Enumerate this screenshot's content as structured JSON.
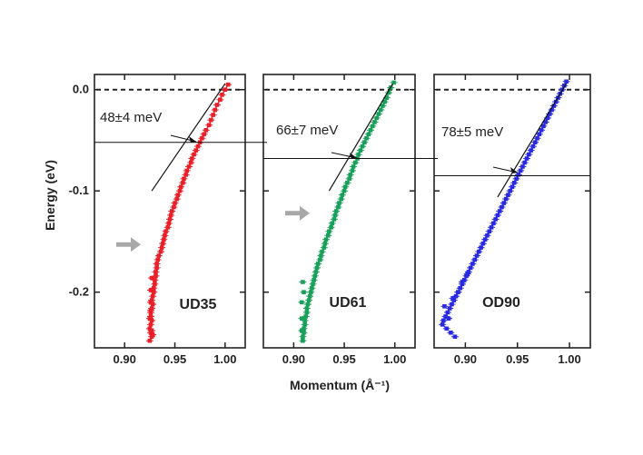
{
  "chart_data": {
    "type": "scatter",
    "xlabel": "Momentum (Å⁻¹)",
    "ylabel": "Energy (eV)",
    "xlim": [
      0.87,
      1.02
    ],
    "ylim": [
      -0.255,
      0.015
    ],
    "x_ticks": [
      "0.90",
      "0.95",
      "1.00"
    ],
    "y_ticks": [
      "0.0",
      "-0.1",
      "-0.2"
    ],
    "y_tick_values": [
      0.0,
      -0.1,
      -0.2
    ],
    "x_tick_values": [
      0.9,
      0.95,
      1.0
    ],
    "zero_line": "dashed",
    "panels": [
      {
        "label": "UD35",
        "color": "#e8202a",
        "kink_label": "48±4 meV",
        "kink_energy": -0.052,
        "kink_momentum": 0.966,
        "fit_line": [
          [
            0.927,
            -0.1
          ],
          [
            1.0,
            0.006
          ]
        ],
        "arrow_energy": -0.153,
        "x": [
          1.003,
          1.0,
          0.997,
          0.995,
          0.992,
          0.99,
          0.988,
          0.986,
          0.984,
          0.981,
          0.979,
          0.977,
          0.975,
          0.973,
          0.971,
          0.969,
          0.967,
          0.966,
          0.964,
          0.962,
          0.961,
          0.959,
          0.958,
          0.956,
          0.955,
          0.953,
          0.952,
          0.95,
          0.949,
          0.947,
          0.946,
          0.945,
          0.944,
          0.943,
          0.941,
          0.94,
          0.939,
          0.938,
          0.937,
          0.936,
          0.934,
          0.933,
          0.932,
          0.932,
          0.931,
          0.931,
          0.93,
          0.93,
          0.929,
          0.929,
          0.928,
          0.927,
          0.928,
          0.927,
          0.926,
          0.926,
          0.927,
          0.926,
          0.925,
          0.926,
          0.927,
          0.925,
          0.926,
          0.927,
          0.926,
          0.925,
          0.927,
          0.926,
          0.928
        ],
        "y": [
          0.005,
          0.0,
          -0.005,
          -0.01,
          -0.015,
          -0.02,
          -0.025,
          -0.03,
          -0.035,
          -0.04,
          -0.044,
          -0.048,
          -0.052,
          -0.056,
          -0.06,
          -0.064,
          -0.068,
          -0.072,
          -0.076,
          -0.08,
          -0.084,
          -0.088,
          -0.092,
          -0.096,
          -0.1,
          -0.104,
          -0.108,
          -0.112,
          -0.116,
          -0.12,
          -0.124,
          -0.128,
          -0.132,
          -0.136,
          -0.14,
          -0.144,
          -0.148,
          -0.152,
          -0.156,
          -0.16,
          -0.164,
          -0.168,
          -0.172,
          -0.176,
          -0.18,
          -0.184,
          -0.188,
          -0.192,
          -0.196,
          -0.2,
          -0.204,
          -0.208,
          -0.212,
          -0.216,
          -0.22,
          -0.224,
          -0.228,
          -0.232,
          -0.236,
          -0.24,
          -0.244,
          -0.248,
          -0.21,
          -0.186,
          -0.198,
          -0.226,
          -0.238,
          -0.218,
          -0.242
        ]
      },
      {
        "label": "UD61",
        "color": "#19a05a",
        "kink_label": "66±7 meV",
        "kink_energy": -0.068,
        "kink_momentum": 0.956,
        "fit_line": [
          [
            0.935,
            -0.1
          ],
          [
            0.998,
            0.006
          ]
        ],
        "arrow_energy": -0.122,
        "x": [
          0.999,
          0.996,
          0.994,
          0.992,
          0.99,
          0.988,
          0.986,
          0.984,
          0.982,
          0.98,
          0.978,
          0.976,
          0.974,
          0.972,
          0.97,
          0.968,
          0.966,
          0.964,
          0.963,
          0.961,
          0.959,
          0.958,
          0.956,
          0.955,
          0.953,
          0.951,
          0.95,
          0.948,
          0.947,
          0.945,
          0.944,
          0.942,
          0.941,
          0.94,
          0.938,
          0.937,
          0.935,
          0.934,
          0.932,
          0.931,
          0.93,
          0.928,
          0.927,
          0.926,
          0.924,
          0.923,
          0.922,
          0.921,
          0.92,
          0.919,
          0.918,
          0.917,
          0.916,
          0.915,
          0.914,
          0.913,
          0.913,
          0.912,
          0.911,
          0.911,
          0.91,
          0.91,
          0.909,
          0.909,
          0.908,
          0.908,
          0.909,
          0.908,
          0.91
        ],
        "y": [
          0.007,
          0.002,
          -0.003,
          -0.008,
          -0.012,
          -0.016,
          -0.02,
          -0.024,
          -0.028,
          -0.032,
          -0.036,
          -0.04,
          -0.044,
          -0.048,
          -0.052,
          -0.056,
          -0.06,
          -0.064,
          -0.068,
          -0.072,
          -0.076,
          -0.08,
          -0.084,
          -0.088,
          -0.092,
          -0.096,
          -0.1,
          -0.104,
          -0.108,
          -0.112,
          -0.116,
          -0.12,
          -0.124,
          -0.128,
          -0.132,
          -0.136,
          -0.14,
          -0.144,
          -0.148,
          -0.152,
          -0.156,
          -0.16,
          -0.164,
          -0.168,
          -0.172,
          -0.176,
          -0.18,
          -0.184,
          -0.188,
          -0.192,
          -0.196,
          -0.2,
          -0.204,
          -0.208,
          -0.212,
          -0.216,
          -0.22,
          -0.224,
          -0.228,
          -0.232,
          -0.236,
          -0.24,
          -0.244,
          -0.248,
          -0.226,
          -0.21,
          -0.19,
          -0.238,
          -0.2
        ]
      },
      {
        "label": "OD90",
        "color": "#2a2ae0",
        "kink_label": "78±5 meV",
        "kink_energy": -0.085,
        "kink_momentum": 0.947,
        "fit_line": [
          [
            0.931,
            -0.106
          ],
          [
            0.997,
            0.006
          ]
        ],
        "arrow_energy": null,
        "x": [
          0.997,
          0.995,
          0.993,
          0.991,
          0.989,
          0.987,
          0.985,
          0.983,
          0.981,
          0.979,
          0.977,
          0.975,
          0.973,
          0.971,
          0.969,
          0.967,
          0.965,
          0.963,
          0.961,
          0.959,
          0.957,
          0.955,
          0.953,
          0.951,
          0.949,
          0.947,
          0.945,
          0.943,
          0.941,
          0.939,
          0.937,
          0.935,
          0.933,
          0.931,
          0.929,
          0.927,
          0.925,
          0.923,
          0.921,
          0.919,
          0.917,
          0.915,
          0.913,
          0.911,
          0.909,
          0.907,
          0.905,
          0.903,
          0.901,
          0.899,
          0.897,
          0.895,
          0.893,
          0.891,
          0.889,
          0.887,
          0.885,
          0.883,
          0.881,
          0.879,
          0.878,
          0.882,
          0.886,
          0.89,
          0.884,
          0.88,
          0.888,
          0.893,
          0.897,
          0.902
        ],
        "y": [
          0.008,
          0.004,
          0.0,
          -0.004,
          -0.008,
          -0.012,
          -0.016,
          -0.02,
          -0.024,
          -0.028,
          -0.032,
          -0.036,
          -0.04,
          -0.044,
          -0.048,
          -0.052,
          -0.056,
          -0.06,
          -0.064,
          -0.068,
          -0.072,
          -0.076,
          -0.08,
          -0.084,
          -0.088,
          -0.092,
          -0.096,
          -0.1,
          -0.104,
          -0.108,
          -0.112,
          -0.116,
          -0.12,
          -0.124,
          -0.128,
          -0.132,
          -0.136,
          -0.14,
          -0.144,
          -0.148,
          -0.152,
          -0.156,
          -0.16,
          -0.164,
          -0.168,
          -0.172,
          -0.176,
          -0.18,
          -0.184,
          -0.188,
          -0.192,
          -0.196,
          -0.2,
          -0.204,
          -0.208,
          -0.212,
          -0.216,
          -0.22,
          -0.224,
          -0.228,
          -0.232,
          -0.236,
          -0.24,
          -0.244,
          -0.226,
          -0.214,
          -0.206,
          -0.2,
          -0.19,
          -0.182
        ]
      }
    ]
  }
}
